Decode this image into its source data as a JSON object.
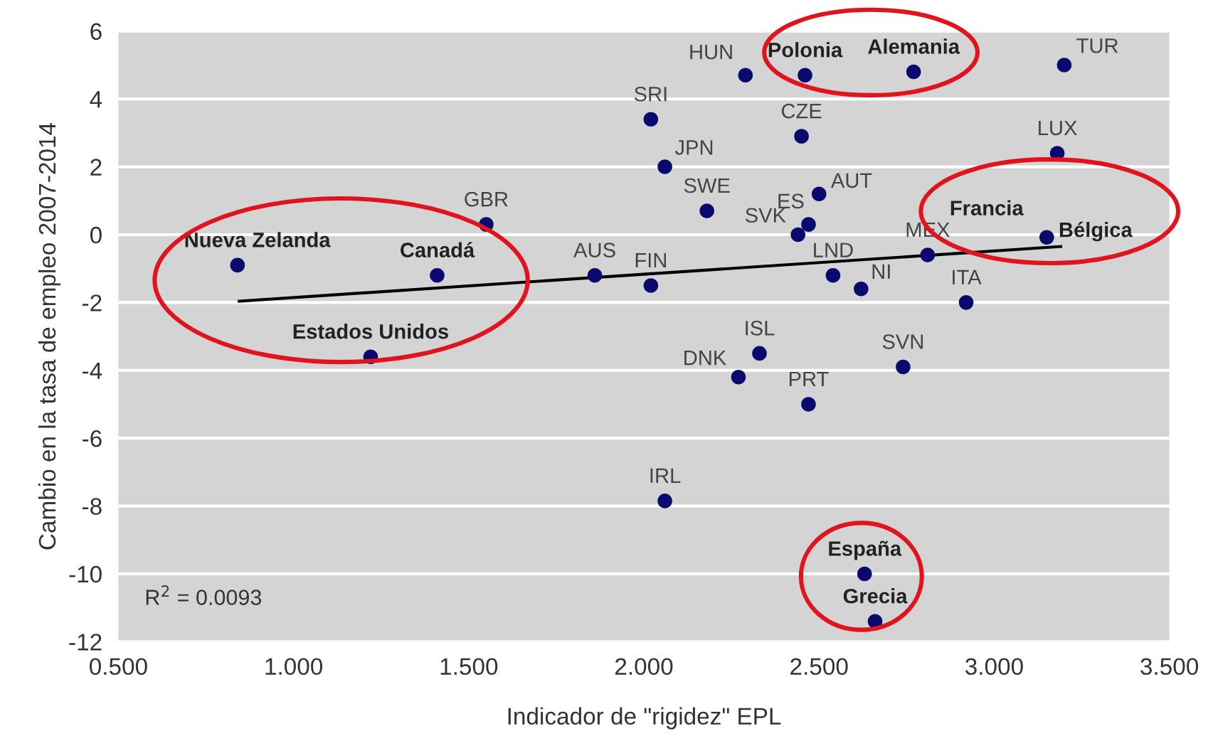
{
  "chart_data": {
    "type": "scatter",
    "xlabel": "Indicador de \"rigidez\" EPL",
    "ylabel": "Cambio en la tasa de empleo 2007-2014",
    "xlim": [
      0.5,
      3.5
    ],
    "xticks": [
      {
        "value": 0.5,
        "label": "0.500"
      },
      {
        "value": 1.0,
        "label": "1.000"
      },
      {
        "value": 1.5,
        "label": "1.500"
      },
      {
        "value": 2.0,
        "label": "2.000"
      },
      {
        "value": 2.5,
        "label": "2.500"
      },
      {
        "value": 3.0,
        "label": "3.000"
      },
      {
        "value": 3.5,
        "label": "3.500"
      }
    ],
    "ylim": [
      -12,
      6
    ],
    "yticks": [
      -12,
      -10,
      -8,
      -6,
      -4,
      -2,
      0,
      2,
      4,
      6
    ],
    "grid": "y",
    "series": [
      {
        "marker": "circle",
        "color": "#0a0a6e",
        "x": [
          0.84,
          1.41,
          1.55,
          1.86,
          1.22,
          2.29,
          2.46,
          2.77,
          3.2,
          2.02,
          2.45,
          3.18,
          2.06,
          2.18,
          2.5,
          2.47,
          2.44,
          3.14,
          3.15,
          2.81,
          2.02,
          2.54,
          2.62,
          2.92,
          2.33,
          2.27,
          2.74,
          2.47,
          2.06,
          2.63,
          2.66
        ],
        "values": [
          -0.9,
          -1.2,
          0.3,
          -1.2,
          -3.6,
          4.7,
          4.7,
          4.8,
          5.0,
          3.4,
          2.9,
          2.4,
          2.0,
          0.7,
          1.2,
          0.3,
          0.0,
          null,
          -0.08,
          -0.6,
          -1.5,
          -1.2,
          -1.6,
          -2.0,
          -3.5,
          -4.2,
          -3.9,
          -5.0,
          -7.85,
          -10.0,
          -11.4
        ]
      },
      {
        "type": "line",
        "color": "#000000",
        "x": [
          0.845,
          3.19
        ],
        "values": [
          -1.96,
          -0.35
        ]
      }
    ],
    "annotations": [
      {
        "text": "Nueva Zelanda",
        "x": 0.84,
        "y": -0.9
      },
      {
        "text": "Canadá",
        "x": 1.41,
        "y": -1.2
      },
      {
        "text": "GBR",
        "x": 1.55,
        "y": 0.3
      },
      {
        "text": "AUS",
        "x": 1.86,
        "y": -1.2
      },
      {
        "text": "Estados Unidos",
        "x": 1.22,
        "y": -3.6
      },
      {
        "text": "HUN",
        "x": 2.29,
        "y": 4.7
      },
      {
        "text": "Polonia",
        "x": 2.46,
        "y": 4.7
      },
      {
        "text": "Alemania",
        "x": 2.77,
        "y": 4.8
      },
      {
        "text": "TUR",
        "x": 3.2,
        "y": 5.0
      },
      {
        "text": "SRI",
        "x": 2.02,
        "y": 3.4
      },
      {
        "text": "CZE",
        "x": 2.45,
        "y": 2.9
      },
      {
        "text": "LUX",
        "x": 3.18,
        "y": 2.4
      },
      {
        "text": "JPN",
        "x": 2.06,
        "y": 2.0
      },
      {
        "text": "SWE",
        "x": 2.18,
        "y": 0.7
      },
      {
        "text": "AUT",
        "x": 2.5,
        "y": 1.2
      },
      {
        "text": "ES",
        "x": 2.47,
        "y": 0.3
      },
      {
        "text": "SVK",
        "x": 2.44,
        "y": 0.0
      },
      {
        "text": "Francia",
        "x": 3.14,
        "y": -0.02
      },
      {
        "text": "Bélgica",
        "x": 3.15,
        "y": -0.08
      },
      {
        "text": "MEX",
        "x": 2.81,
        "y": -0.6
      },
      {
        "text": "FIN",
        "x": 2.02,
        "y": -1.5
      },
      {
        "text": "LND",
        "x": 2.54,
        "y": -1.2
      },
      {
        "text": "NI",
        "x": 2.62,
        "y": -1.6
      },
      {
        "text": "ITA",
        "x": 2.92,
        "y": -2.0
      },
      {
        "text": "ISL",
        "x": 2.33,
        "y": -3.5
      },
      {
        "text": "DNK",
        "x": 2.27,
        "y": -4.2
      },
      {
        "text": "SVN",
        "x": 2.74,
        "y": -3.9
      },
      {
        "text": "PRT",
        "x": 2.47,
        "y": -5.0
      },
      {
        "text": "IRL",
        "x": 2.06,
        "y": -7.85
      },
      {
        "text": "España",
        "x": 2.63,
        "y": -10.0
      },
      {
        "text": "Grecia",
        "x": 2.66,
        "y": -11.4
      },
      "R$^{2}$ = 0.0093"
    ]
  }
}
